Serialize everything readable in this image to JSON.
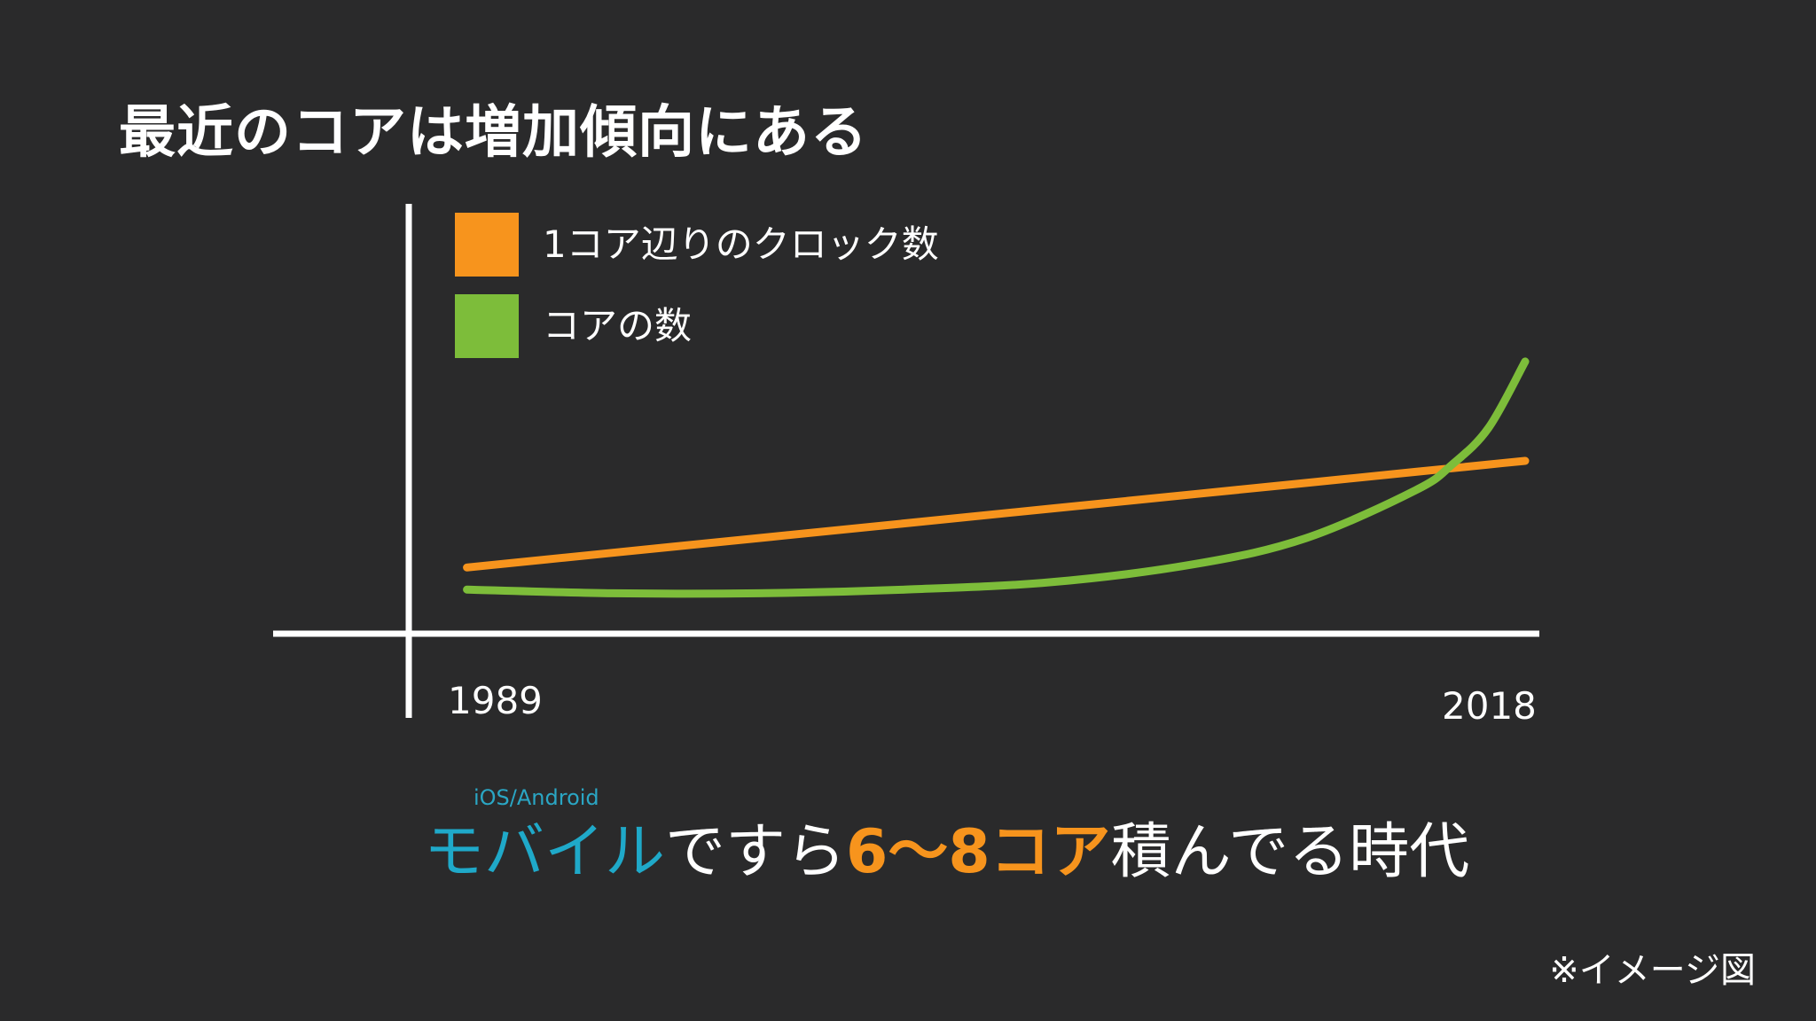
{
  "slide": {
    "title": "最近のコアは増加傾向にある",
    "caption": {
      "ruby": "iOS/Android",
      "part_mobile": "モバイル",
      "part_mid": "ですら",
      "part_cores": "6〜8コア",
      "part_end": "積んでる時代"
    },
    "note": "※イメージ図"
  },
  "chart_data": {
    "type": "line",
    "title": "",
    "xlabel": "",
    "ylabel": "",
    "x_tick_labels": [
      "1989",
      "2018"
    ],
    "x": [
      1989,
      1993,
      1997,
      2001,
      2005,
      2009,
      2012,
      2015,
      2016,
      2017,
      2018
    ],
    "xlim": [
      1985,
      2018
    ],
    "ylim": [
      0,
      10
    ],
    "grid": false,
    "legend_position": "top-left",
    "series": [
      {
        "name": "1コア辺りのクロック数",
        "color": "#f7941d",
        "values": [
          1.8,
          2.2,
          2.6,
          3.0,
          3.4,
          3.8,
          4.1,
          4.4,
          4.5,
          4.6,
          4.7
        ]
      },
      {
        "name": "コアの数",
        "color": "#7dbd3a",
        "values": [
          1.2,
          1.1,
          1.1,
          1.2,
          1.4,
          1.9,
          2.6,
          3.9,
          4.6,
          5.6,
          7.4
        ]
      }
    ]
  }
}
